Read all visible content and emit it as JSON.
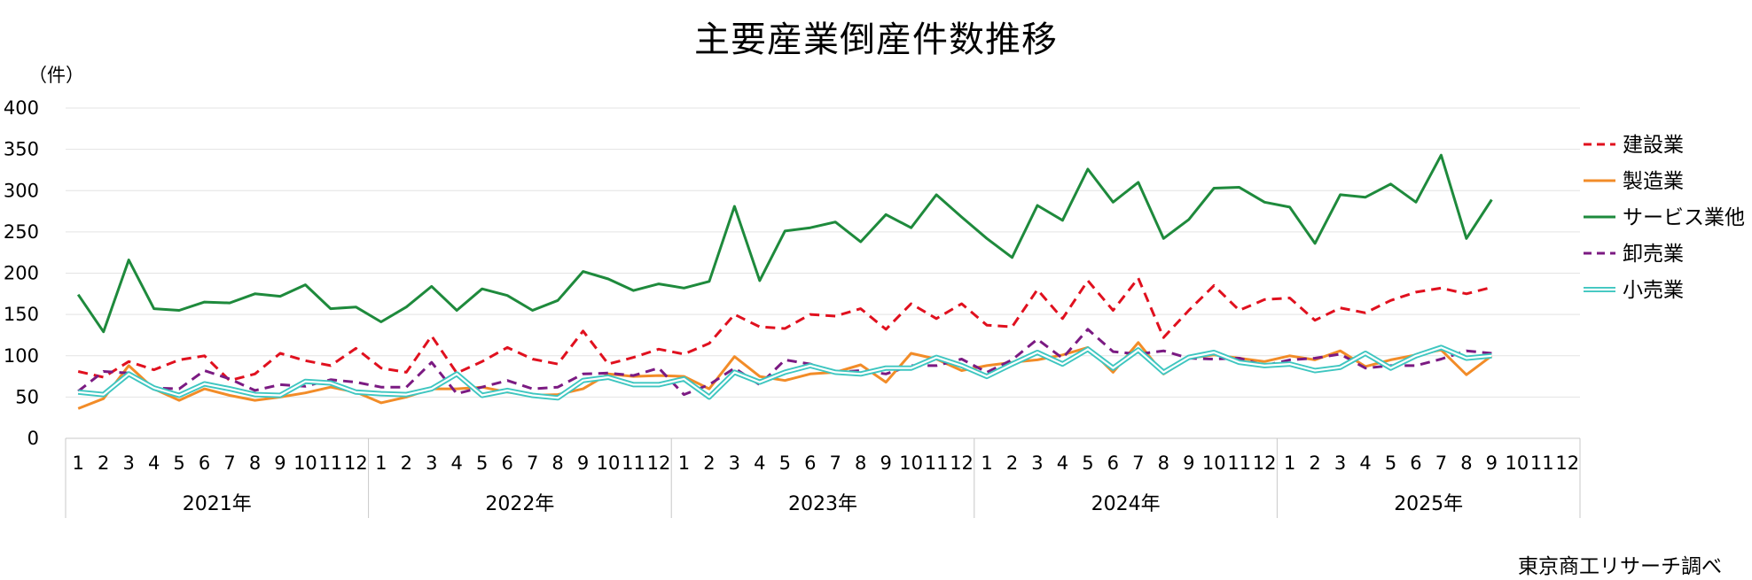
{
  "chart_data": {
    "type": "line",
    "title": "主要産業倒産件数推移",
    "ylabel": "（件）",
    "ylim": [
      0,
      400
    ],
    "yticks": [
      0,
      50,
      100,
      150,
      200,
      250,
      300,
      350,
      400
    ],
    "grid": true,
    "legend_position": "right",
    "month_labels": [
      "1",
      "2",
      "3",
      "4",
      "5",
      "6",
      "7",
      "8",
      "9",
      "10",
      "11",
      "12",
      "1",
      "2",
      "3",
      "4",
      "5",
      "6",
      "7",
      "8",
      "9",
      "10",
      "11",
      "12",
      "1",
      "2",
      "3",
      "4",
      "5",
      "6",
      "7",
      "8",
      "9",
      "10",
      "11",
      "12",
      "1",
      "2",
      "3",
      "4",
      "5",
      "6",
      "7",
      "8",
      "9",
      "10",
      "11",
      "12",
      "1",
      "2",
      "3",
      "4",
      "5",
      "6",
      "7",
      "8",
      "9",
      "10",
      "11",
      "12"
    ],
    "year_labels": [
      "2021年",
      "2022年",
      "2023年",
      "2024年",
      "2025年"
    ],
    "series": [
      {
        "name": "建設業",
        "color": "#e0101e",
        "style": "dashed",
        "values": [
          81,
          74,
          93,
          83,
          95,
          100,
          70,
          78,
          103,
          94,
          88,
          109,
          85,
          80,
          124,
          79,
          93,
          110,
          96,
          90,
          130,
          90,
          98,
          108,
          102,
          115,
          150,
          135,
          133,
          150,
          148,
          157,
          132,
          163,
          145,
          163,
          137,
          135,
          180,
          145,
          191,
          155,
          194,
          122,
          155,
          185,
          155,
          168,
          170,
          143,
          158,
          152,
          167,
          177,
          182,
          175,
          183
        ]
      },
      {
        "name": "製造業",
        "color": "#f28c28",
        "style": "solid",
        "values": [
          36,
          48,
          88,
          60,
          46,
          60,
          52,
          46,
          50,
          55,
          62,
          56,
          43,
          50,
          60,
          60,
          62,
          56,
          52,
          53,
          60,
          78,
          75,
          76,
          75,
          60,
          99,
          75,
          70,
          78,
          80,
          89,
          68,
          103,
          96,
          82,
          88,
          92,
          95,
          101,
          110,
          80,
          116,
          78,
          97,
          101,
          97,
          93,
          100,
          95,
          106,
          87,
          95,
          101,
          107,
          77,
          100
        ]
      },
      {
        "name": "サービス業他",
        "color": "#1e8a3c",
        "style": "solid",
        "values": [
          174,
          129,
          216,
          157,
          155,
          165,
          164,
          175,
          172,
          186,
          157,
          159,
          141,
          159,
          184,
          155,
          181,
          173,
          155,
          167,
          202,
          193,
          179,
          187,
          182,
          190,
          281,
          191,
          251,
          255,
          262,
          238,
          271,
          255,
          295,
          268,
          242,
          219,
          282,
          264,
          326,
          286,
          310,
          242,
          265,
          303,
          304,
          286,
          280,
          236,
          295,
          292,
          308,
          286,
          343,
          242,
          289
        ]
      },
      {
        "name": "卸売業",
        "color": "#7b1a82",
        "style": "dashed",
        "values": [
          57,
          81,
          79,
          61,
          60,
          82,
          72,
          58,
          65,
          63,
          71,
          68,
          62,
          62,
          92,
          54,
          62,
          70,
          60,
          62,
          78,
          79,
          76,
          85,
          53,
          65,
          85,
          65,
          95,
          90,
          80,
          82,
          78,
          88,
          88,
          96,
          80,
          95,
          120,
          97,
          132,
          105,
          102,
          106,
          97,
          96,
          97,
          88,
          95,
          97,
          102,
          85,
          88,
          88,
          96,
          106,
          103
        ]
      },
      {
        "name": "小売業",
        "color": "#3ec6c0",
        "style": "double",
        "values": [
          56,
          53,
          78,
          61,
          52,
          66,
          60,
          53,
          52,
          69,
          67,
          56,
          54,
          53,
          60,
          78,
          52,
          58,
          52,
          49,
          70,
          74,
          65,
          65,
          72,
          50,
          80,
          68,
          80,
          88,
          80,
          78,
          85,
          85,
          98,
          88,
          75,
          90,
          104,
          90,
          108,
          85,
          107,
          80,
          98,
          104,
          92,
          88,
          90,
          82,
          86,
          103,
          85,
          100,
          110,
          97,
          100
        ]
      }
    ]
  },
  "source_note": "東京商工リサーチ調べ"
}
